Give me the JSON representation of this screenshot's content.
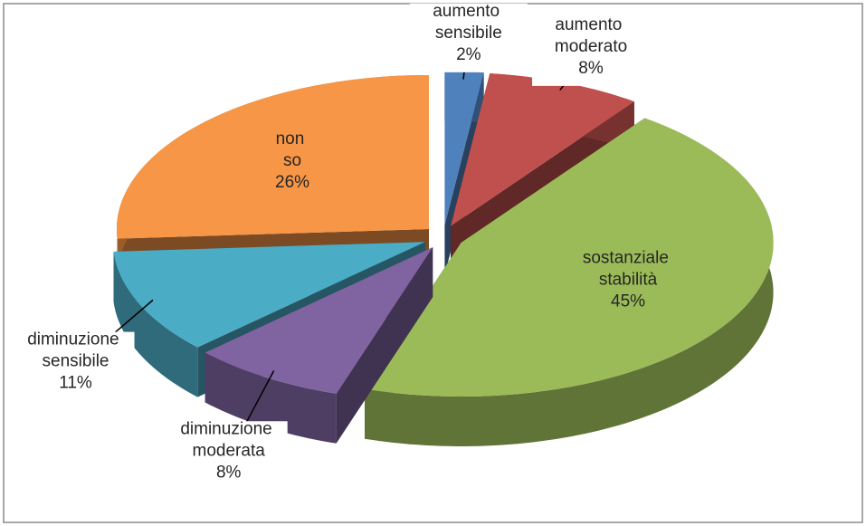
{
  "chart_data": {
    "type": "pie",
    "categories": [
      "aumento sensibile",
      "aumento moderato",
      "sostanziale stabilità",
      "diminuzione moderata",
      "diminuzione sensibile",
      "non so"
    ],
    "values": [
      2,
      8,
      45,
      8,
      11,
      26
    ],
    "value_labels": [
      "2%",
      "8%",
      "45%",
      "8%",
      "11%",
      "26%"
    ],
    "colors": [
      "#4f81bd",
      "#c0504d",
      "#9bbb59",
      "#8064a2",
      "#4bacc6",
      "#f79646"
    ]
  }
}
